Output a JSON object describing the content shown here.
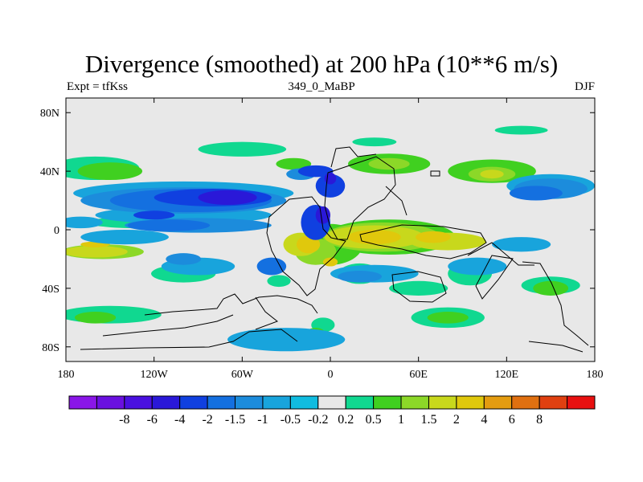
{
  "figure": {
    "title": "Divergence (smoothed) at 200 hPa (10**6 m/s)",
    "left_label": "Expt = tfKss",
    "center_label": "349_0_MaBP",
    "right_label": "DJF"
  },
  "axes": {
    "lon_ticks": [
      {
        "value": -180,
        "label": "180"
      },
      {
        "value": -120,
        "label": "120W"
      },
      {
        "value": -60,
        "label": "60W"
      },
      {
        "value": 0,
        "label": "0"
      },
      {
        "value": 60,
        "label": "60E"
      },
      {
        "value": 120,
        "label": "120E"
      },
      {
        "value": 180,
        "label": "180"
      }
    ],
    "lat_ticks": [
      {
        "value": 80,
        "label": "80N"
      },
      {
        "value": 40,
        "label": "40N"
      },
      {
        "value": 0,
        "label": "0"
      },
      {
        "value": -40,
        "label": "40S"
      },
      {
        "value": -80,
        "label": "80S"
      }
    ],
    "lon_range": [
      -180,
      180
    ],
    "lat_range": [
      -90,
      90
    ]
  },
  "colorbar": {
    "colors": [
      "#8a16e8",
      "#6a10e0",
      "#4a10e0",
      "#2a18d8",
      "#1040e0",
      "#1470e0",
      "#1c8cdc",
      "#18a4dc",
      "#10bce0",
      "#e8e8e8",
      "#10d890",
      "#40d020",
      "#8cd828",
      "#c8d81c",
      "#e0c80c",
      "#e49c10",
      "#e07010",
      "#e04010",
      "#e81010"
    ],
    "labels": [
      "-8",
      "-6",
      "-4",
      "-2",
      "-1.5",
      "-1",
      "-0.5",
      "-0.2",
      "0.2",
      "0.5",
      "1",
      "1.5",
      "2",
      "4",
      "6",
      "8"
    ]
  },
  "map_layers": {
    "background_color": "#e8e8e8",
    "patches": [
      {
        "level": 0.5,
        "ellipses": [
          [
            -160,
            42,
            30,
            8
          ],
          [
            -60,
            55,
            30,
            5
          ],
          [
            30,
            60,
            15,
            3
          ],
          [
            130,
            68,
            18,
            3
          ],
          [
            -150,
            -58,
            35,
            6
          ],
          [
            80,
            -60,
            25,
            7
          ],
          [
            150,
            -38,
            20,
            6
          ],
          [
            -100,
            -30,
            22,
            6
          ],
          [
            -35,
            -35,
            8,
            4
          ],
          [
            60,
            -40,
            20,
            5
          ],
          [
            -130,
            5,
            35,
            4
          ],
          [
            20,
            -30,
            14,
            7
          ],
          [
            95,
            -30,
            15,
            8
          ],
          [
            -5,
            -65,
            8,
            5
          ]
        ]
      },
      {
        "level": 1,
        "ellipses": [
          [
            -150,
            40,
            22,
            6
          ],
          [
            40,
            45,
            28,
            7
          ],
          [
            110,
            40,
            30,
            8
          ],
          [
            -160,
            -60,
            14,
            4
          ],
          [
            150,
            -40,
            12,
            5
          ],
          [
            80,
            -60,
            14,
            4
          ],
          [
            -25,
            45,
            12,
            4
          ],
          [
            0,
            -10,
            22,
            14
          ],
          [
            40,
            -5,
            45,
            12
          ],
          [
            -10,
            -70,
            6,
            3
          ]
        ]
      },
      {
        "level": 1.5,
        "ellipses": [
          [
            -155,
            -15,
            28,
            5
          ],
          [
            35,
            -5,
            40,
            10
          ],
          [
            110,
            38,
            16,
            5
          ],
          [
            -10,
            -15,
            14,
            9
          ],
          [
            40,
            45,
            14,
            4
          ]
        ]
      },
      {
        "level": 2,
        "ellipses": [
          [
            -160,
            -15,
            22,
            4
          ],
          [
            30,
            -5,
            34,
            8
          ],
          [
            80,
            -8,
            26,
            6
          ],
          [
            -20,
            -10,
            12,
            8
          ],
          [
            110,
            38,
            8,
            3
          ]
        ]
      },
      {
        "level": 4,
        "ellipses": [
          [
            30,
            -5,
            18,
            5
          ],
          [
            -15,
            -10,
            8,
            6
          ],
          [
            70,
            -5,
            12,
            4
          ],
          [
            0,
            -22,
            5,
            3
          ],
          [
            -160,
            -10,
            10,
            2
          ]
        ]
      },
      {
        "level": -0.5,
        "ellipses": [
          [
            -100,
            25,
            75,
            8
          ],
          [
            -100,
            10,
            60,
            6
          ],
          [
            150,
            30,
            30,
            8
          ],
          [
            -90,
            -25,
            25,
            6
          ],
          [
            30,
            -30,
            30,
            6
          ],
          [
            -30,
            -75,
            40,
            8
          ],
          [
            100,
            -25,
            20,
            6
          ],
          [
            -170,
            5,
            15,
            4
          ],
          [
            130,
            -10,
            20,
            5
          ],
          [
            -140,
            -5,
            30,
            5
          ]
        ]
      },
      {
        "level": -1,
        "ellipses": [
          [
            -100,
            20,
            70,
            9
          ],
          [
            -90,
            3,
            50,
            5
          ],
          [
            150,
            28,
            25,
            7
          ],
          [
            -20,
            38,
            10,
            4
          ],
          [
            -100,
            -20,
            12,
            4
          ],
          [
            20,
            -32,
            15,
            4
          ]
        ]
      },
      {
        "level": -1.5,
        "ellipses": [
          [
            -95,
            20,
            55,
            8
          ],
          [
            -110,
            3,
            28,
            4
          ],
          [
            140,
            25,
            18,
            5
          ],
          [
            -40,
            -25,
            10,
            6
          ]
        ]
      },
      {
        "level": -2,
        "ellipses": [
          [
            -80,
            22,
            40,
            6
          ],
          [
            -10,
            5,
            10,
            12
          ],
          [
            -10,
            40,
            12,
            4
          ],
          [
            0,
            30,
            10,
            8
          ],
          [
            -120,
            10,
            14,
            3
          ]
        ]
      },
      {
        "level": -4,
        "ellipses": [
          [
            -70,
            22,
            20,
            5
          ],
          [
            -5,
            10,
            5,
            6
          ],
          [
            0,
            35,
            4,
            4
          ]
        ]
      }
    ]
  }
}
